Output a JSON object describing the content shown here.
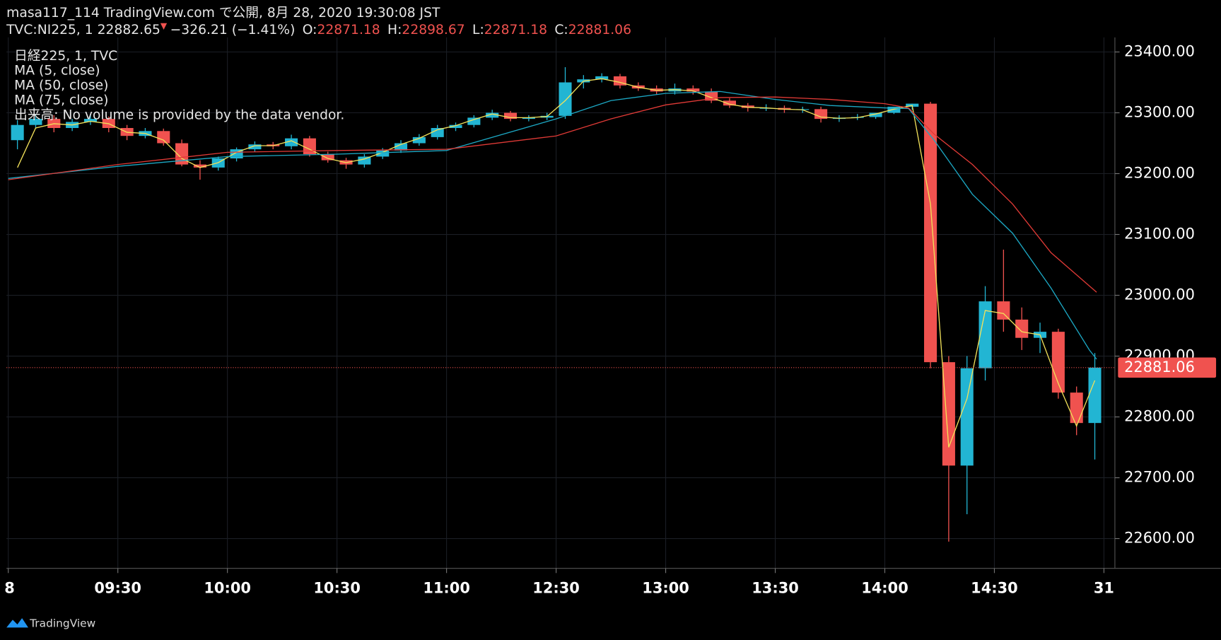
{
  "header": {
    "line1": "masa117_114 TradingView.com で公開, 8月 28, 2020 19:30:08 JST",
    "symbol": "TVC:NI225, 1 22882.65",
    "arrow": "▼",
    "change": "−326.21 (−1.41%)",
    "o_label": "O:",
    "o": "22871.18",
    "h_label": "H:",
    "h": "22898.67",
    "l_label": "L:",
    "l": "22871.18",
    "c_label": "C:",
    "c": "22881.06"
  },
  "chart_data": {
    "type": "candlestick",
    "instrument": "日経225, 1, TVC",
    "volume_note": "出来高: No volume is provided by the data vendor.",
    "up_color": "#22b5d3",
    "down_color": "#f0524f",
    "grid": true,
    "open": [
      23255,
      23280,
      23290,
      23275,
      23285,
      23290,
      23275,
      23262,
      23270,
      23250,
      23215,
      23210,
      23225,
      23240,
      23248,
      23245,
      23258,
      23232,
      23222,
      23215,
      23228,
      23238,
      23250,
      23260,
      23275,
      23280,
      23292,
      23300,
      23290,
      23292,
      23295,
      23350,
      23355,
      23360,
      23345,
      23340,
      23335,
      23340,
      23335,
      23320,
      23312,
      23308,
      23308,
      23305,
      23306,
      23290,
      23292,
      23293,
      23300,
      23310,
      23315,
      22890,
      22720,
      22880,
      22990,
      22960,
      22930,
      22940,
      22840,
      22790
    ],
    "high": [
      23288,
      23298,
      23296,
      23290,
      23298,
      23294,
      23280,
      23275,
      23274,
      23256,
      23222,
      23228,
      23243,
      23253,
      23252,
      23264,
      23262,
      23236,
      23226,
      23232,
      23242,
      23255,
      23265,
      23280,
      23284,
      23296,
      23305,
      23303,
      23296,
      23300,
      23375,
      23362,
      23365,
      23364,
      23350,
      23345,
      23348,
      23345,
      23340,
      23324,
      23316,
      23314,
      23312,
      23310,
      23310,
      23296,
      23298,
      23300,
      23306,
      23315,
      23318,
      22900,
      22900,
      23015,
      23075,
      22980,
      22955,
      22945,
      22850,
      22905
    ],
    "low": [
      23240,
      23274,
      23268,
      23270,
      23280,
      23268,
      23255,
      23258,
      23246,
      23212,
      23190,
      23205,
      23220,
      23236,
      23240,
      23240,
      23228,
      23218,
      23208,
      23210,
      23224,
      23234,
      23246,
      23256,
      23270,
      23276,
      23288,
      23286,
      23286,
      23288,
      23290,
      23340,
      23350,
      23340,
      23336,
      23330,
      23330,
      23330,
      23316,
      23308,
      23302,
      23303,
      23300,
      23300,
      23284,
      23285,
      23288,
      23290,
      23298,
      23305,
      22880,
      22595,
      22640,
      22860,
      22940,
      22910,
      22905,
      22830,
      22770,
      22730
    ],
    "close": [
      23280,
      23290,
      23275,
      23285,
      23290,
      23275,
      23262,
      23270,
      23250,
      23215,
      23210,
      23225,
      23240,
      23248,
      23245,
      23258,
      23232,
      23222,
      23215,
      23228,
      23238,
      23250,
      23260,
      23275,
      23280,
      23292,
      23300,
      23290,
      23292,
      23295,
      23350,
      23355,
      23360,
      23345,
      23340,
      23335,
      23340,
      23335,
      23320,
      23312,
      23308,
      23308,
      23305,
      23306,
      23290,
      23292,
      23293,
      23300,
      23310,
      23315,
      22890,
      22720,
      22880,
      22990,
      22960,
      22930,
      22940,
      22840,
      22790,
      22881.06
    ],
    "series": [
      {
        "name": "MA (5, close)",
        "color": "#f2e15a",
        "values": [
          23210,
          23275,
          23282,
          23280,
          23286,
          23282,
          23268,
          23266,
          23255,
          23225,
          23210,
          23218,
          23235,
          23246,
          23246,
          23254,
          23240,
          23225,
          23218,
          23224,
          23235,
          23248,
          23258,
          23272,
          23279,
          23289,
          23298,
          23292,
          23292,
          23294,
          23320,
          23352,
          23356,
          23350,
          23342,
          23337,
          23338,
          23336,
          23325,
          23314,
          23309,
          23308,
          23306,
          23305,
          23293,
          23291,
          23292,
          23298,
          23306,
          23312,
          23150,
          22750,
          22830,
          22975,
          22970,
          22940,
          22935,
          22855,
          22785,
          22860
        ]
      },
      {
        "name": "MA (50, close)",
        "color": "#1ca8c4",
        "x": [
          0,
          6,
          12,
          18,
          24,
          30,
          33,
          36,
          39,
          42,
          45,
          48,
          49.3,
          50.7,
          52.8,
          55,
          57.1,
          59.2,
          59.6
        ],
        "values": [
          23192,
          23212,
          23228,
          23232,
          23238,
          23290,
          23320,
          23332,
          23335,
          23322,
          23312,
          23308,
          23307,
          23255,
          23166,
          23102,
          23012,
          22910,
          22895
        ]
      },
      {
        "name": "MA (75, close)",
        "color": "#e03a36",
        "x": [
          0,
          6,
          12,
          18,
          24,
          30,
          33,
          36,
          39,
          42,
          45,
          48,
          49.3,
          50.7,
          52.8,
          55,
          57.1,
          59.6
        ],
        "values": [
          23190,
          23215,
          23235,
          23238,
          23240,
          23262,
          23290,
          23313,
          23325,
          23326,
          23322,
          23315,
          23308,
          23265,
          23215,
          23150,
          23070,
          23005
        ]
      }
    ],
    "last_price": 22881.06,
    "xlim": [
      -0.1,
      60.6
    ],
    "xticks": [
      {
        "value": 0,
        "label": "8"
      },
      {
        "value": 6,
        "label": "09:30"
      },
      {
        "value": 12,
        "label": "10:00"
      },
      {
        "value": 18,
        "label": "10:30"
      },
      {
        "value": 24,
        "label": "11:00"
      },
      {
        "value": 30,
        "label": "12:30"
      },
      {
        "value": 36,
        "label": "13:00"
      },
      {
        "value": 42,
        "label": "13:30"
      },
      {
        "value": 48,
        "label": "14:00"
      },
      {
        "value": 54,
        "label": "14:30"
      },
      {
        "value": 60,
        "label": "31"
      }
    ],
    "ylim": [
      22551,
      23424
    ],
    "yticks": [
      {
        "value": 22600,
        "label": "22600.00"
      },
      {
        "value": 22700,
        "label": "22700.00"
      },
      {
        "value": 22800,
        "label": "22800.00"
      },
      {
        "value": 22900,
        "label": "22900.00"
      },
      {
        "value": 23000,
        "label": "23000.00"
      },
      {
        "value": 23100,
        "label": "23100.00"
      },
      {
        "value": 23200,
        "label": "23200.00"
      },
      {
        "value": 23300,
        "label": "23300.00"
      },
      {
        "value": 23400,
        "label": "23400.00"
      }
    ]
  }
}
